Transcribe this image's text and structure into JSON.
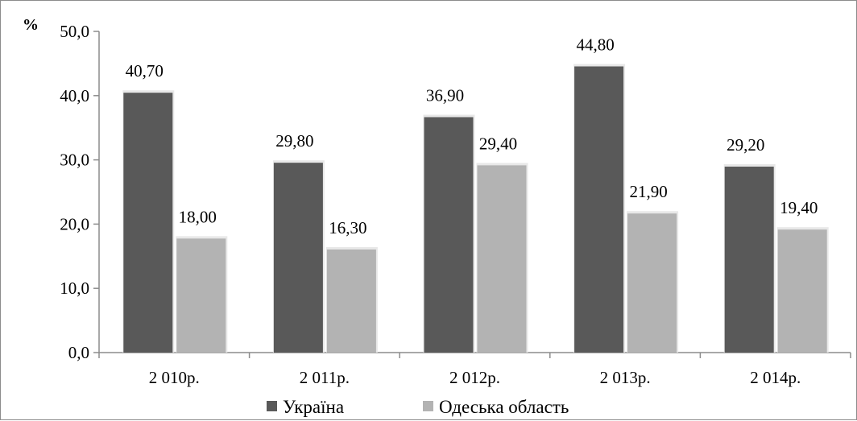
{
  "chart_data": {
    "type": "bar",
    "ylabel": "%",
    "categories": [
      "2 010р.",
      "2 011р.",
      "2 012р.",
      "2 013р.",
      "2 014р."
    ],
    "series": [
      {
        "name": "Україна",
        "color": "#595959",
        "values": [
          40.7,
          29.8,
          36.9,
          44.8,
          29.2
        ],
        "labels": [
          "40,70",
          "29,80",
          "36,90",
          "44,80",
          "29,20"
        ]
      },
      {
        "name": "Одеська область",
        "color": "#b3b3b3",
        "values": [
          18.0,
          16.3,
          29.4,
          21.9,
          19.4
        ],
        "labels": [
          "18,00",
          "16,30",
          "29,40",
          "21,90",
          "19,40"
        ]
      }
    ],
    "ylim": [
      0,
      50
    ],
    "yticks": [
      0,
      10,
      20,
      30,
      40,
      50
    ],
    "ytick_labels": [
      "0,0",
      "10,0",
      "20,0",
      "30,0",
      "40,0",
      "50,0"
    ],
    "grid": false,
    "legend_position": "bottom"
  }
}
